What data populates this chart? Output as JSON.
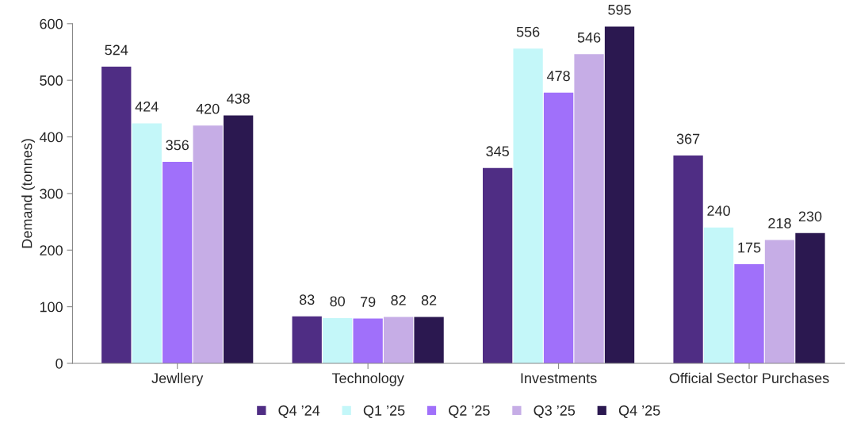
{
  "chart_data": {
    "type": "bar",
    "ylabel": "Demand (tonnes)",
    "categories": [
      "Jewllery",
      "Technology",
      "Investments",
      "Official Sector Purchases"
    ],
    "series": [
      {
        "name": "Q4 ’24",
        "color": "#4f2d84",
        "values": [
          524,
          83,
          345,
          367
        ]
      },
      {
        "name": "Q1 ’25",
        "color": "#c4f7f9",
        "values": [
          424,
          80,
          556,
          240
        ]
      },
      {
        "name": "Q2 ’25",
        "color": "#a070fa",
        "values": [
          356,
          79,
          478,
          175
        ]
      },
      {
        "name": "Q3 ’25",
        "color": "#c6ade6",
        "values": [
          420,
          82,
          546,
          218
        ]
      },
      {
        "name": "Q4 ’25",
        "color": "#2b1850",
        "values": [
          438,
          82,
          595,
          230
        ]
      }
    ],
    "ylim": [
      0,
      600
    ],
    "yticks": [
      0,
      100,
      200,
      300,
      400,
      500,
      600
    ],
    "data_labels": true,
    "grid": false,
    "legend": "bottom"
  }
}
